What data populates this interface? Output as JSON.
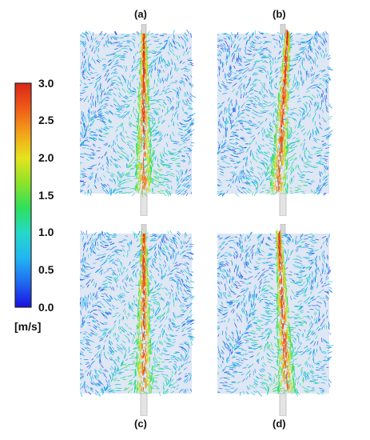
{
  "panels": [
    {
      "label": "(a)"
    },
    {
      "label": "(b)"
    },
    {
      "label": "(c)"
    },
    {
      "label": "(d)"
    }
  ],
  "colorbar": {
    "unit": "[m/s]",
    "min": 0.0,
    "max": 3.0,
    "ticks": [
      "0.0",
      "0.5",
      "1.0",
      "1.5",
      "2.0",
      "2.5",
      "3.0"
    ],
    "colors": [
      "#1a10e0",
      "#1f6bf0",
      "#22b6f2",
      "#25d9c8",
      "#2ee05a",
      "#8ee22a",
      "#e6e31c",
      "#f3a21a",
      "#ef5a18",
      "#d9261a"
    ]
  }
}
